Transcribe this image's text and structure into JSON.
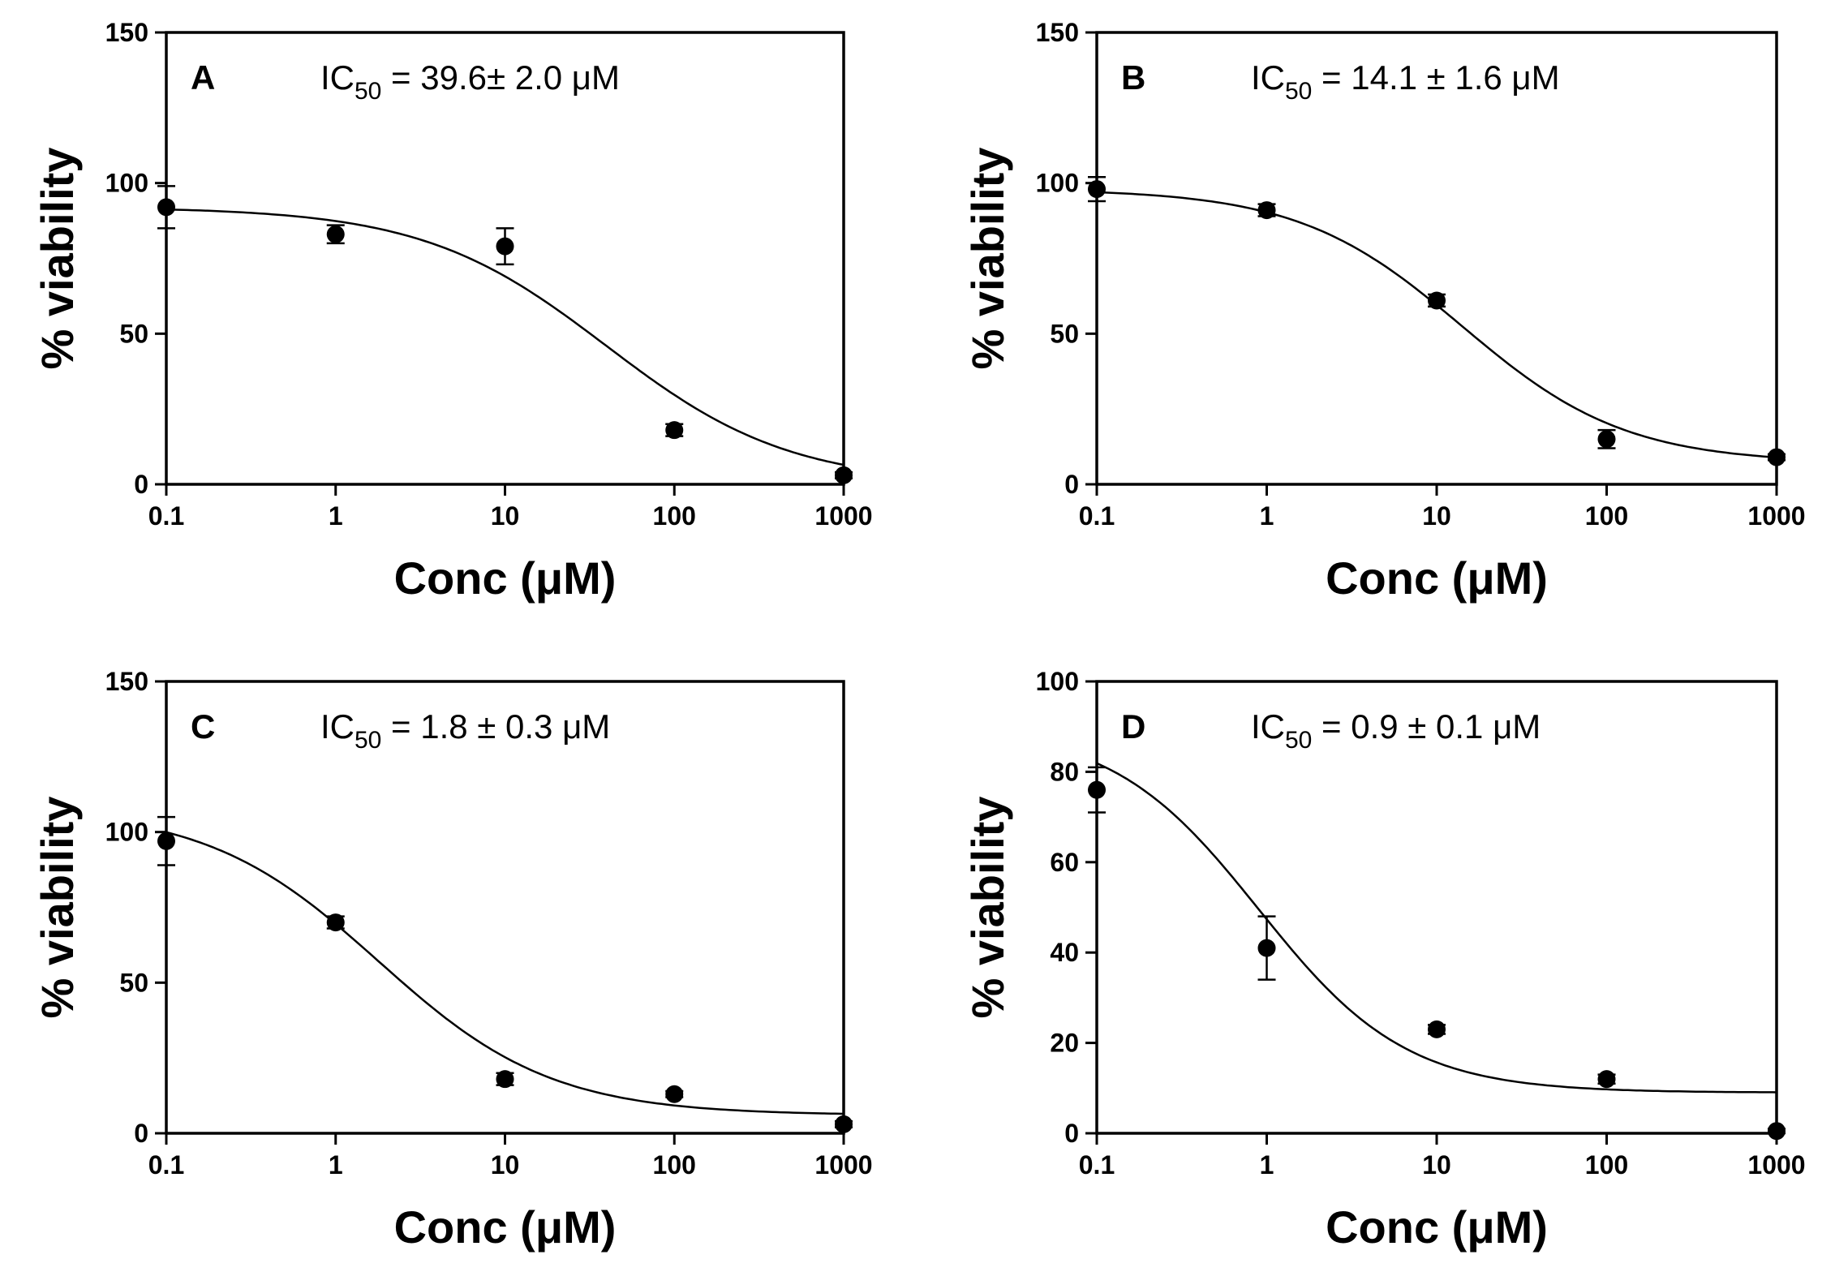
{
  "chart_data": [
    {
      "type": "scatter",
      "panel": "A",
      "annotation": {
        "prefix": "IC",
        "sub": "50",
        "suffix": " = 39.6± 2.0 μM"
      },
      "xlabel": "Conc (μM)",
      "ylabel": "% viability",
      "xscale": "log",
      "xlim": [
        0.1,
        1000
      ],
      "ylim": [
        0,
        150
      ],
      "xticks": [
        0.1,
        1,
        10,
        100,
        1000
      ],
      "xtick_labels": [
        "0.1",
        "1",
        "10",
        "100",
        "1000"
      ],
      "yticks": [
        0,
        50,
        100,
        150
      ],
      "ytick_labels": [
        "0",
        "50",
        "100",
        "150"
      ],
      "points": [
        {
          "x": 0.1,
          "y": 92,
          "err": 7
        },
        {
          "x": 1,
          "y": 83,
          "err": 3
        },
        {
          "x": 10,
          "y": 79,
          "err": 6
        },
        {
          "x": 100,
          "y": 18,
          "err": 2
        },
        {
          "x": 1000,
          "y": 3,
          "err": 1
        }
      ],
      "fit": {
        "top": 92,
        "bottom": 0,
        "ic50": 39.6,
        "hill": 0.8
      }
    },
    {
      "type": "scatter",
      "panel": "B",
      "annotation": {
        "prefix": "IC",
        "sub": "50",
        "suffix": " = 14.1 ± 1.6 μM"
      },
      "xlabel": "Conc (μM)",
      "ylabel": "% viability",
      "xscale": "log",
      "xlim": [
        0.1,
        1000
      ],
      "ylim": [
        0,
        150
      ],
      "xticks": [
        0.1,
        1,
        10,
        100,
        1000
      ],
      "xtick_labels": [
        "0.1",
        "1",
        "10",
        "100",
        "1000"
      ],
      "yticks": [
        0,
        50,
        100,
        150
      ],
      "ytick_labels": [
        "0",
        "50",
        "100",
        "150"
      ],
      "points": [
        {
          "x": 0.1,
          "y": 98,
          "err": 4
        },
        {
          "x": 1,
          "y": 91,
          "err": 2
        },
        {
          "x": 10,
          "y": 61,
          "err": 2
        },
        {
          "x": 100,
          "y": 15,
          "err": 3
        },
        {
          "x": 1000,
          "y": 9,
          "err": 1
        }
      ],
      "fit": {
        "top": 98,
        "bottom": 7,
        "ic50": 14.1,
        "hill": 0.9
      }
    },
    {
      "type": "scatter",
      "panel": "C",
      "annotation": {
        "prefix": "IC",
        "sub": "50",
        "suffix": " = 1.8 ± 0.3 μM"
      },
      "xlabel": "Conc (μM)",
      "ylabel": "% viability",
      "xscale": "log",
      "xlim": [
        0.1,
        1000
      ],
      "ylim": [
        0,
        150
      ],
      "xticks": [
        0.1,
        1,
        10,
        100,
        1000
      ],
      "xtick_labels": [
        "0.1",
        "1",
        "10",
        "100",
        "1000"
      ],
      "yticks": [
        0,
        50,
        100,
        150
      ],
      "ytick_labels": [
        "0",
        "50",
        "100",
        "150"
      ],
      "points": [
        {
          "x": 0.1,
          "y": 97,
          "err": 8
        },
        {
          "x": 1,
          "y": 70,
          "err": 2
        },
        {
          "x": 10,
          "y": 18,
          "err": 2
        },
        {
          "x": 100,
          "y": 13,
          "err": 1
        },
        {
          "x": 1000,
          "y": 3,
          "err": 1
        }
      ],
      "fit": {
        "top": 108,
        "bottom": 6,
        "ic50": 1.8,
        "hill": 0.85
      }
    },
    {
      "type": "scatter",
      "panel": "D",
      "annotation": {
        "prefix": "IC",
        "sub": "50",
        "suffix": " = 0.9 ± 0.1 μM"
      },
      "xlabel": "Conc (μM)",
      "ylabel": "% viability",
      "xscale": "log",
      "xlim": [
        0.1,
        1000
      ],
      "ylim": [
        0,
        100
      ],
      "xticks": [
        0.1,
        1,
        10,
        100,
        1000
      ],
      "xtick_labels": [
        "0.1",
        "1",
        "10",
        "100",
        "1000"
      ],
      "yticks": [
        0,
        20,
        40,
        60,
        80,
        100
      ],
      "ytick_labels": [
        "0",
        "20",
        "40",
        "60",
        "80",
        "100"
      ],
      "points": [
        {
          "x": 0.1,
          "y": 76,
          "err": 5
        },
        {
          "x": 1,
          "y": 41,
          "err": 7
        },
        {
          "x": 10,
          "y": 23,
          "err": 1
        },
        {
          "x": 100,
          "y": 12,
          "err": 1
        },
        {
          "x": 1000,
          "y": 0.5,
          "err": 0.5
        }
      ],
      "fit": {
        "top": 90,
        "bottom": 9,
        "ic50": 0.9,
        "hill": 1.0
      }
    }
  ]
}
